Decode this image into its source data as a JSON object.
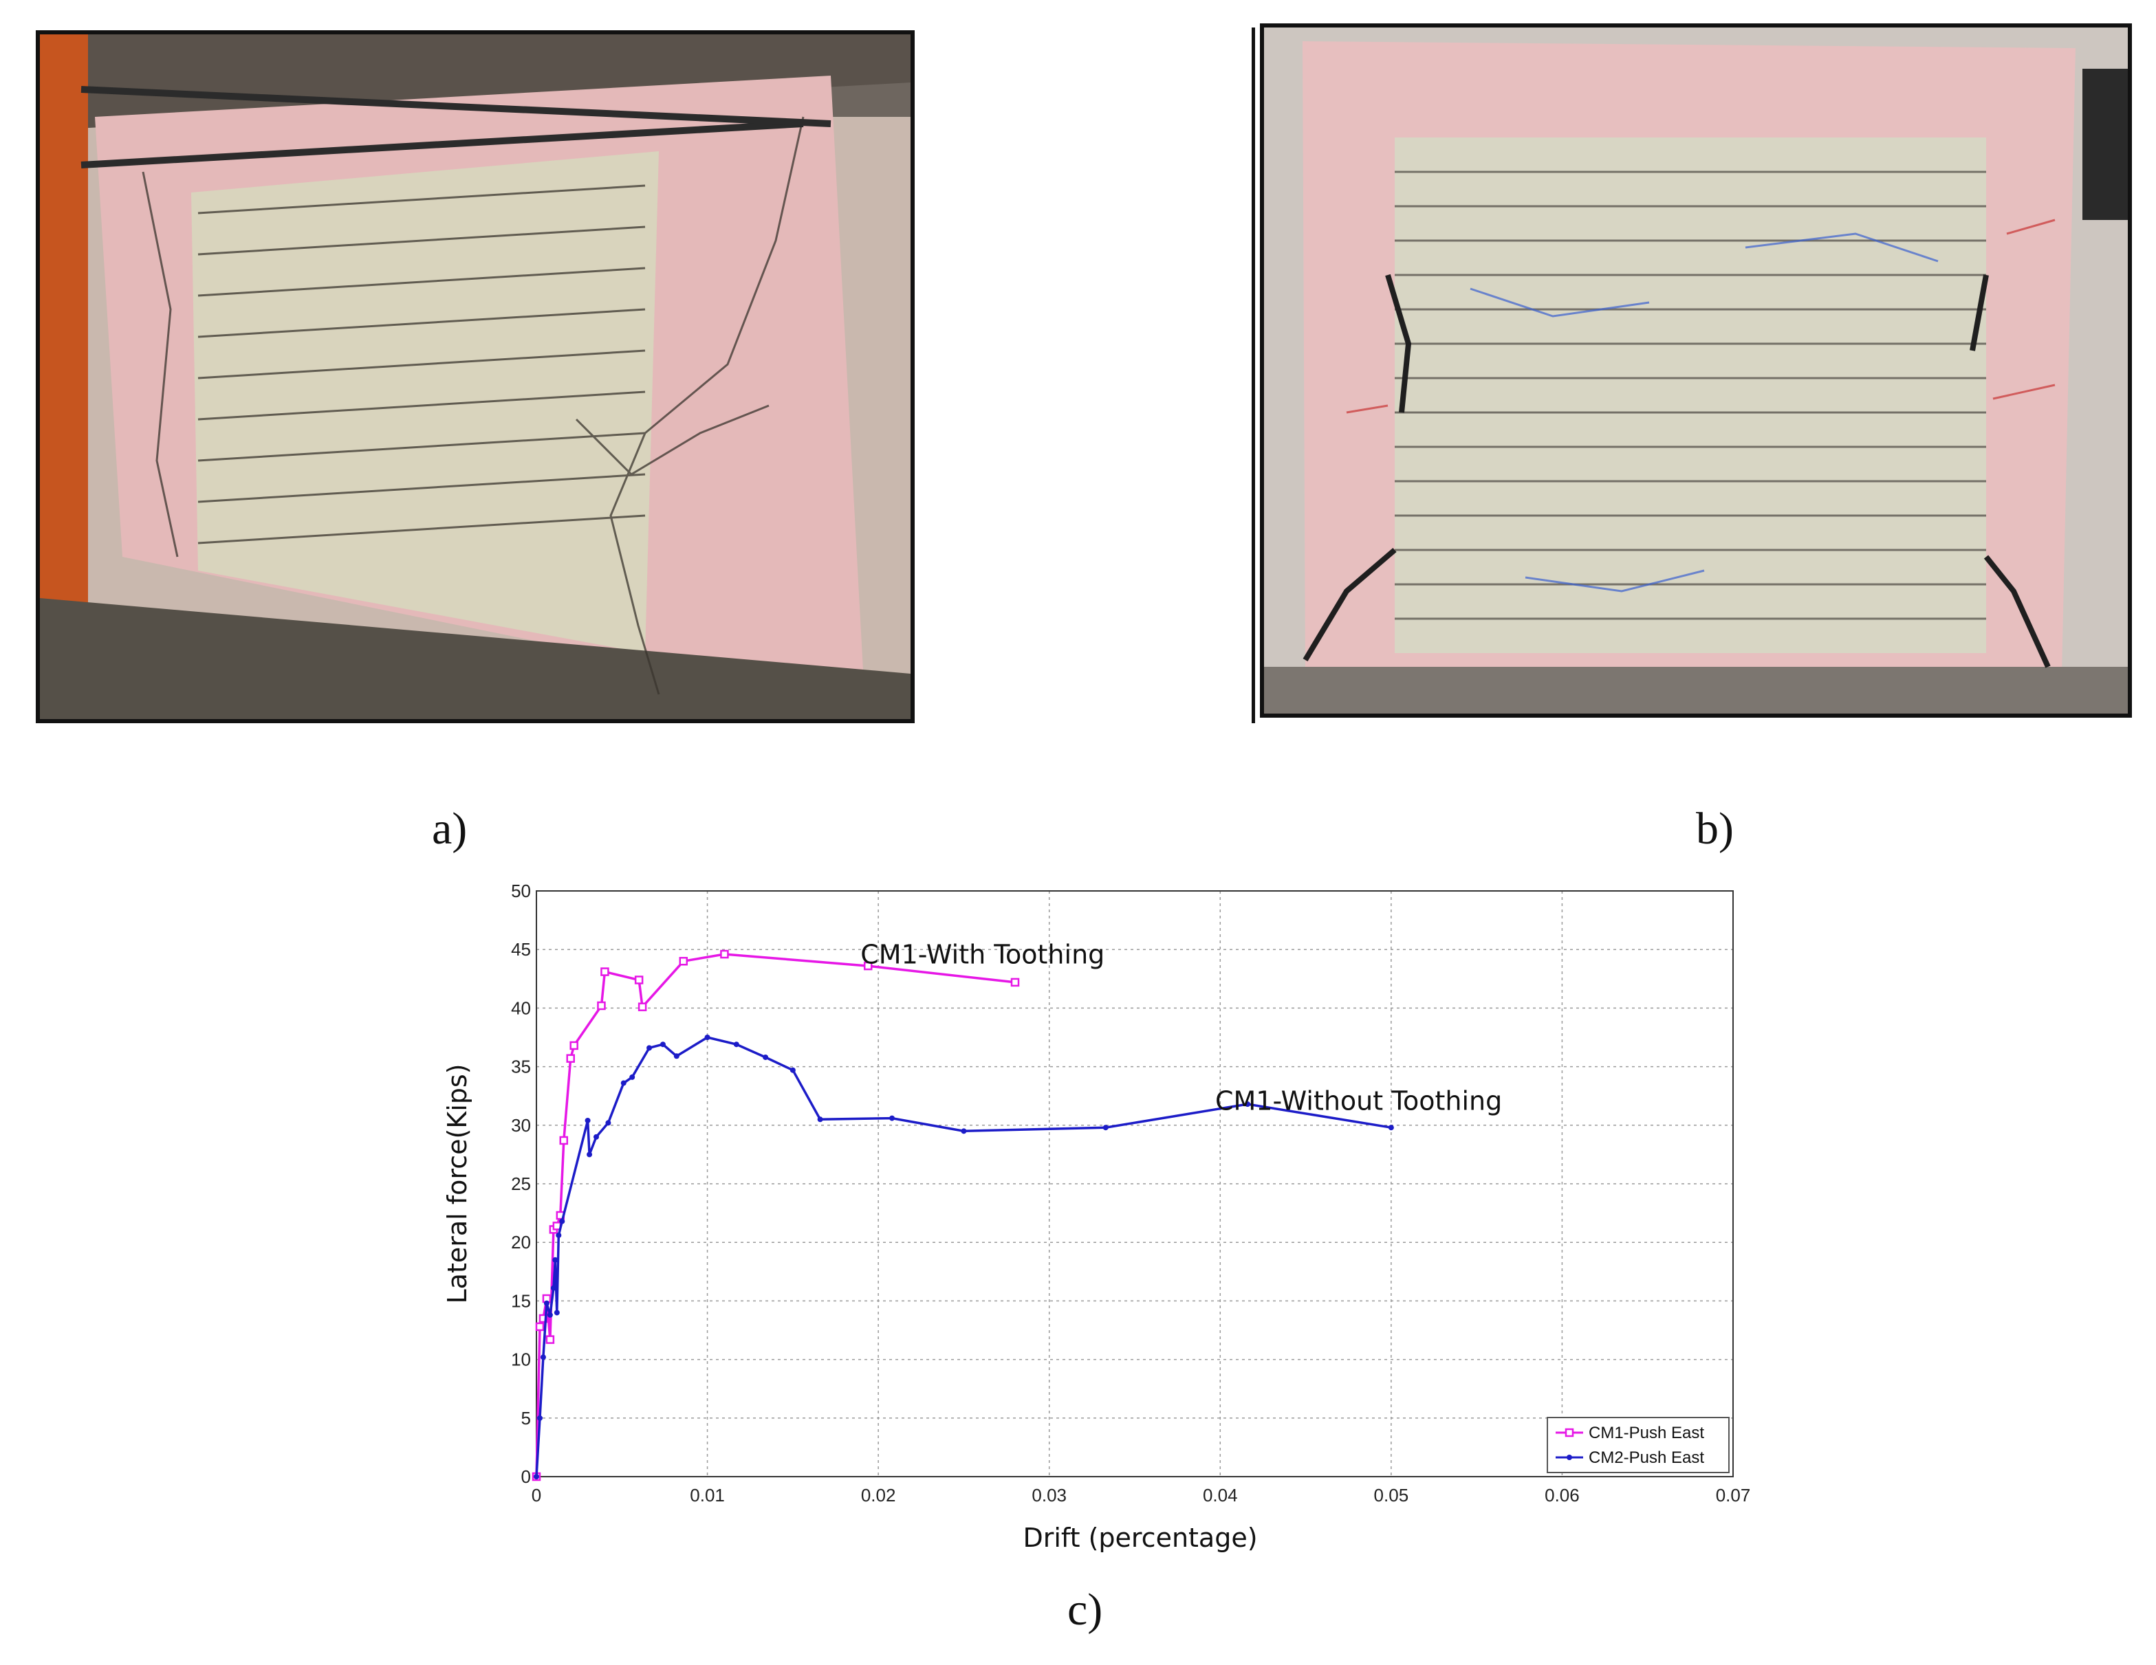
{
  "panels": {
    "a_label": "a)",
    "b_label": "b)",
    "c_label": "c)"
  },
  "photos": {
    "a": "photo-cracked-masonry-wall-a",
    "b": "photo-cracked-masonry-wall-b"
  },
  "colors": {
    "cm1": "#e617e6",
    "cm2": "#1c1cc8",
    "grid": "#9a9a9a"
  },
  "chart_data": {
    "type": "line",
    "title": "",
    "xlabel": "Drift (percentage)",
    "ylabel": "Lateral force(Kips)",
    "xlim": [
      0,
      0.07
    ],
    "ylim": [
      0,
      50
    ],
    "xticks": [
      "0",
      "0.01",
      "0.02",
      "0.03",
      "0.04",
      "0.05",
      "0.06",
      "0.07"
    ],
    "yticks": [
      "0",
      "5",
      "10",
      "15",
      "20",
      "25",
      "30",
      "35",
      "40",
      "45",
      "50"
    ],
    "grid": true,
    "legend_position": "bottom-right",
    "annotations": [
      {
        "text": "CM1-With Toothing",
        "x": 0.0261,
        "y": 43.8
      },
      {
        "text": "CM1-Without Toothing",
        "x": 0.0481,
        "y": 31.3
      }
    ],
    "series": [
      {
        "name": "CM1-Push East",
        "color": "#e617e6",
        "marker": "square",
        "x": [
          0,
          0.0002,
          0.0004,
          0.0006,
          0.0008,
          0.001,
          0.0012,
          0.0014,
          0.0016,
          0.002,
          0.0022,
          0.0038,
          0.004,
          0.006,
          0.0062,
          0.0086,
          0.011,
          0.0194,
          0.028
        ],
        "y": [
          0,
          12.8,
          13.5,
          15.2,
          11.7,
          21.1,
          21.4,
          22.3,
          28.7,
          35.7,
          36.8,
          40.2,
          43.1,
          42.4,
          40.1,
          44.0,
          44.6,
          43.6,
          42.2
        ]
      },
      {
        "name": "CM2-Push East",
        "color": "#1c1cc8",
        "marker": "dot",
        "x": [
          0,
          0.0002,
          0.0004,
          0.0006,
          0.0008,
          0.001,
          0.0011,
          0.0012,
          0.0013,
          0.0015,
          0.003,
          0.0031,
          0.0035,
          0.0042,
          0.0051,
          0.0056,
          0.0066,
          0.0074,
          0.0082,
          0.01,
          0.0117,
          0.0134,
          0.015,
          0.0166,
          0.0208,
          0.025,
          0.0333,
          0.0416,
          0.05
        ],
        "y": [
          0,
          5.0,
          10.2,
          14.8,
          13.8,
          16.1,
          18.5,
          14.0,
          20.6,
          21.8,
          30.4,
          27.5,
          29.0,
          30.2,
          33.6,
          34.1,
          36.6,
          36.9,
          35.9,
          37.5,
          36.9,
          35.8,
          34.7,
          30.5,
          30.6,
          29.5,
          29.8,
          31.8,
          29.8
        ]
      }
    ]
  }
}
